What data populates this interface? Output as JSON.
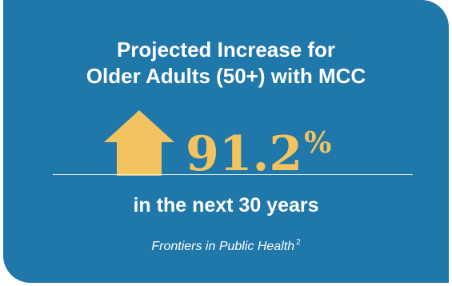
{
  "card": {
    "background": "#2077aa",
    "headline_line1": "Projected Increase for",
    "headline_line2": "Older Adults (50+) with MCC",
    "arrow_icon": "up-arrow-icon",
    "accent": "#f2c35e",
    "stat_value": "91.2",
    "stat_unit": "%",
    "subline": "in the next 30 years",
    "source": "Frontiers in Public Health",
    "source_ref": "2"
  }
}
